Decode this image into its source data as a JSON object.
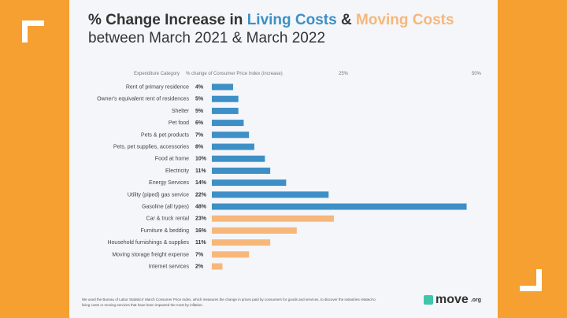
{
  "title": {
    "line1_prefix": "% Change Increase in ",
    "living": "Living Costs",
    "amp": " & ",
    "moving": "Moving Costs",
    "line2": "between March 2021 & March 2022"
  },
  "chart_data": {
    "type": "bar",
    "orientation": "horizontal",
    "category_header": "Expenditure Category",
    "value_header": "% change of Consumer Price Index (increase)",
    "ticks": [
      "25%",
      "50%"
    ],
    "xlim": [
      0,
      50
    ],
    "categories": [
      "Rent of primary residence",
      "Owner's equivalent rent of residences",
      "Shelter",
      "Pet food",
      "Pets & pet products",
      "Pets, pet supplies, accessories",
      "Food at home",
      "Electricity",
      "Energy Services",
      "Utility (piped) gas service",
      "Gasoline (all types)",
      "Car & truck rental",
      "Furniture & bedding",
      "Household furnishings & supplies",
      "Moving storage freight expense",
      "Internet services"
    ],
    "values": [
      4,
      5,
      5,
      6,
      7,
      8,
      10,
      11,
      14,
      22,
      48,
      23,
      16,
      11,
      7,
      2
    ],
    "groups": [
      "living",
      "living",
      "living",
      "living",
      "living",
      "living",
      "living",
      "living",
      "living",
      "living",
      "living",
      "moving",
      "moving",
      "moving",
      "moving",
      "moving"
    ],
    "colors": {
      "living": "#3d8fc6",
      "moving": "#f7b77a"
    }
  },
  "footnote": "We used the Bureau of Labor Statistics' March Consumer Price Index, which measures the change in prices paid by consumers for goods and services, to discover the industries related to living costs or moving services that have been impacted the most by inflation.",
  "logo": {
    "name": "move",
    "suffix": ".org"
  }
}
